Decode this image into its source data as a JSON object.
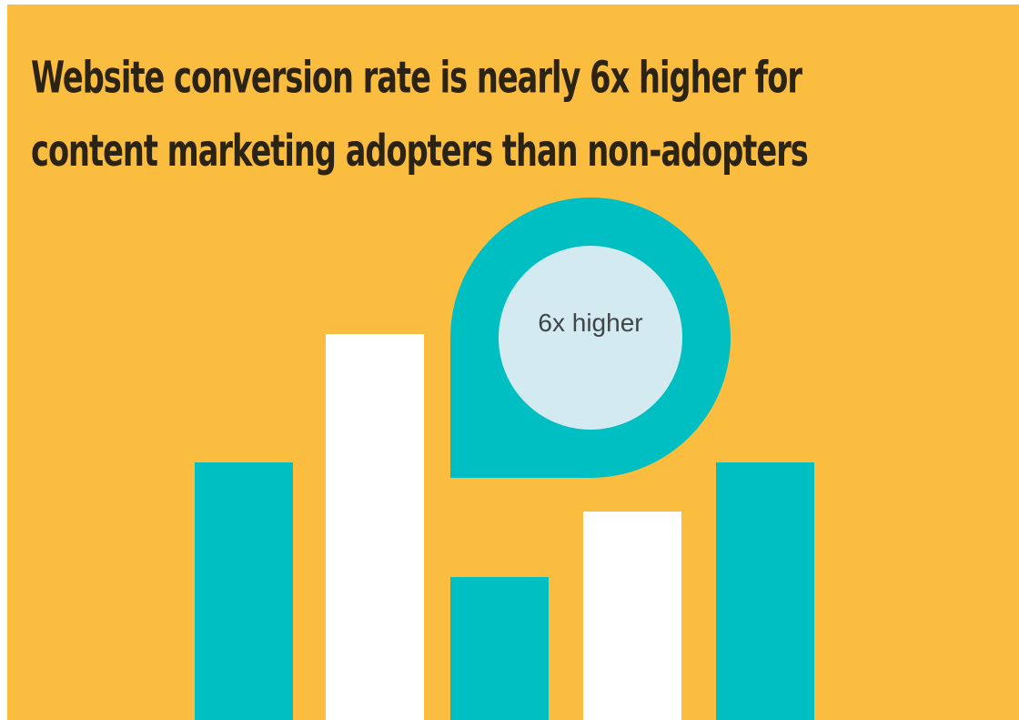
{
  "headline": {
    "line1": "Website conversion rate is nearly 6x higher for",
    "line2": "content marketing adopters than non-adopters"
  },
  "callout": {
    "label": "6x higher"
  },
  "colors": {
    "background": "#fbbd3f",
    "teal": "#00bfc2",
    "white": "#ffffff",
    "bubble": "#d3eaf1",
    "text": "#2b2313"
  },
  "graphic_bars": [
    {
      "color": "teal"
    },
    {
      "color": "white"
    },
    {
      "color": "teal"
    },
    {
      "color": "white"
    },
    {
      "color": "teal"
    }
  ]
}
